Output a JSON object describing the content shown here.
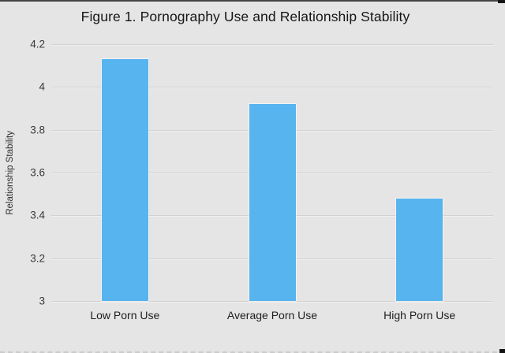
{
  "chart_data": {
    "type": "bar",
    "title": "Figure 1. Pornography Use and Relationship Stability",
    "categories": [
      "Low Porn Use",
      "Average Porn Use",
      "High Porn Use"
    ],
    "values": [
      4.13,
      3.92,
      3.48
    ],
    "xlabel": "",
    "ylabel": "Relationship Stability",
    "ylim": [
      3.0,
      4.2
    ],
    "ytick_labels": [
      "4.2",
      "4",
      "3.8",
      "3.6",
      "3.4",
      "3.2",
      "3"
    ],
    "ytick_values": [
      4.2,
      4.0,
      3.8,
      3.6,
      3.4,
      3.2,
      3.0
    ],
    "grid": true,
    "legend_shown": false,
    "colors": {
      "bar": "#58b4ee",
      "background": "#e6e5e5",
      "gridline": "#d2d1d1",
      "text": "#1d1d1d",
      "top_edge_line": "#454545"
    }
  }
}
